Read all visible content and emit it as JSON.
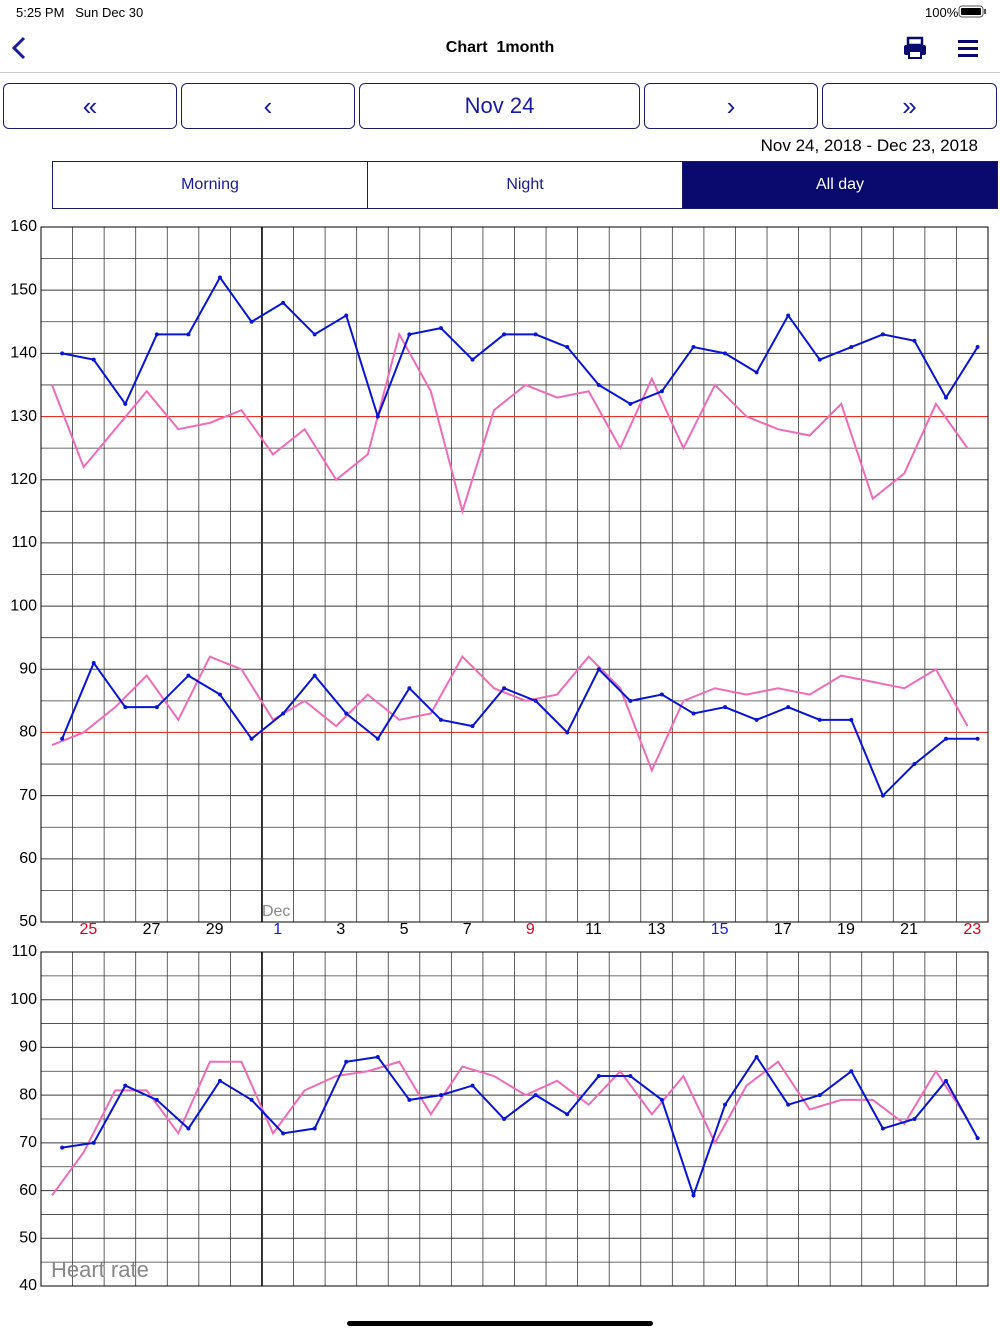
{
  "status_bar": {
    "time": "5:25 PM",
    "date": "Sun Dec 30",
    "battery": "100%"
  },
  "nav": {
    "title": "Chart  1month"
  },
  "pager": {
    "first": "«",
    "prev": "‹",
    "current": "Nov 24",
    "next": "›",
    "last": "»"
  },
  "range": "Nov 24, 2018 - Dec 23, 2018",
  "tabs": {
    "items": [
      "Morning",
      "Night",
      "All day"
    ],
    "selected": 2
  },
  "chart_data": [
    {
      "type": "line",
      "categories": [
        null,
        "25",
        null,
        "27",
        null,
        "29",
        null,
        "1",
        null,
        "3",
        null,
        "5",
        null,
        "7",
        null,
        "9",
        null,
        "11",
        null,
        "13",
        null,
        "15",
        null,
        "17",
        null,
        "19",
        null,
        "21",
        null,
        "23"
      ],
      "category_colors": [
        null,
        "#e8001c",
        null,
        "#000000",
        null,
        "#000000",
        null,
        "#1a1adb",
        null,
        "#000000",
        null,
        "#000000",
        null,
        "#000000",
        null,
        "#e8001c",
        null,
        "#000000",
        null,
        "#000000",
        null,
        "#1a1adb",
        null,
        "#000000",
        null,
        "#000000",
        null,
        "#000000",
        null,
        "#e8001c"
      ],
      "month_label": {
        "text": "Dec",
        "category": 7
      },
      "ylim": [
        50,
        160
      ],
      "yticks": [
        50,
        60,
        70,
        80,
        90,
        100,
        110,
        120,
        130,
        140,
        150,
        160
      ],
      "reference_lines": [
        130,
        80
      ],
      "reference_color": "#e8332a",
      "grid": true,
      "series": [
        {
          "color": "#f06cb8",
          "values": [
            135,
            122,
            128,
            134,
            128,
            129,
            131,
            124,
            128,
            120,
            124,
            143,
            134,
            115,
            131,
            135,
            133,
            134,
            125,
            136,
            125,
            135,
            130,
            128,
            127,
            132,
            117,
            121,
            132,
            125
          ]
        },
        {
          "color": "#0a14d6",
          "markers": true,
          "values": [
            140,
            139,
            132,
            143,
            143,
            152,
            145,
            148,
            143,
            146,
            130,
            143,
            144,
            139,
            143,
            143,
            141,
            135,
            132,
            134,
            141,
            140,
            137,
            146,
            139,
            141,
            143,
            142,
            133,
            141
          ]
        },
        {
          "color": "#f06cb8",
          "values": [
            78,
            80,
            84,
            89,
            82,
            92,
            90,
            82,
            85,
            81,
            86,
            82,
            83,
            92,
            87,
            85,
            86,
            92,
            87,
            74,
            85,
            87,
            86,
            87,
            86,
            89,
            88,
            87,
            90,
            81
          ]
        },
        {
          "color": "#0a14d6",
          "markers": true,
          "values": [
            79,
            91,
            84,
            84,
            89,
            86,
            79,
            83,
            89,
            83,
            79,
            87,
            82,
            81,
            87,
            85,
            80,
            90,
            85,
            86,
            83,
            84,
            82,
            84,
            82,
            82,
            70,
            75,
            79,
            79
          ]
        }
      ]
    },
    {
      "type": "line",
      "title": "Heart rate",
      "ylim": [
        40,
        110
      ],
      "yticks": [
        40,
        50,
        60,
        70,
        80,
        90,
        100,
        110
      ],
      "grid": true,
      "series": [
        {
          "color": "#f06cb8",
          "values": [
            59,
            68,
            81,
            81,
            72,
            87,
            87,
            72,
            81,
            84,
            85,
            87,
            76,
            86,
            84,
            80,
            83,
            78,
            85,
            76,
            84,
            70,
            82,
            87,
            77,
            79,
            79,
            74,
            85,
            75
          ]
        },
        {
          "color": "#0a14d6",
          "markers": true,
          "values": [
            69,
            70,
            82,
            79,
            73,
            83,
            79,
            72,
            73,
            87,
            88,
            79,
            80,
            82,
            75,
            80,
            76,
            84,
            84,
            79,
            59,
            78,
            88,
            78,
            80,
            85,
            73,
            75,
            83,
            71
          ]
        }
      ]
    }
  ]
}
